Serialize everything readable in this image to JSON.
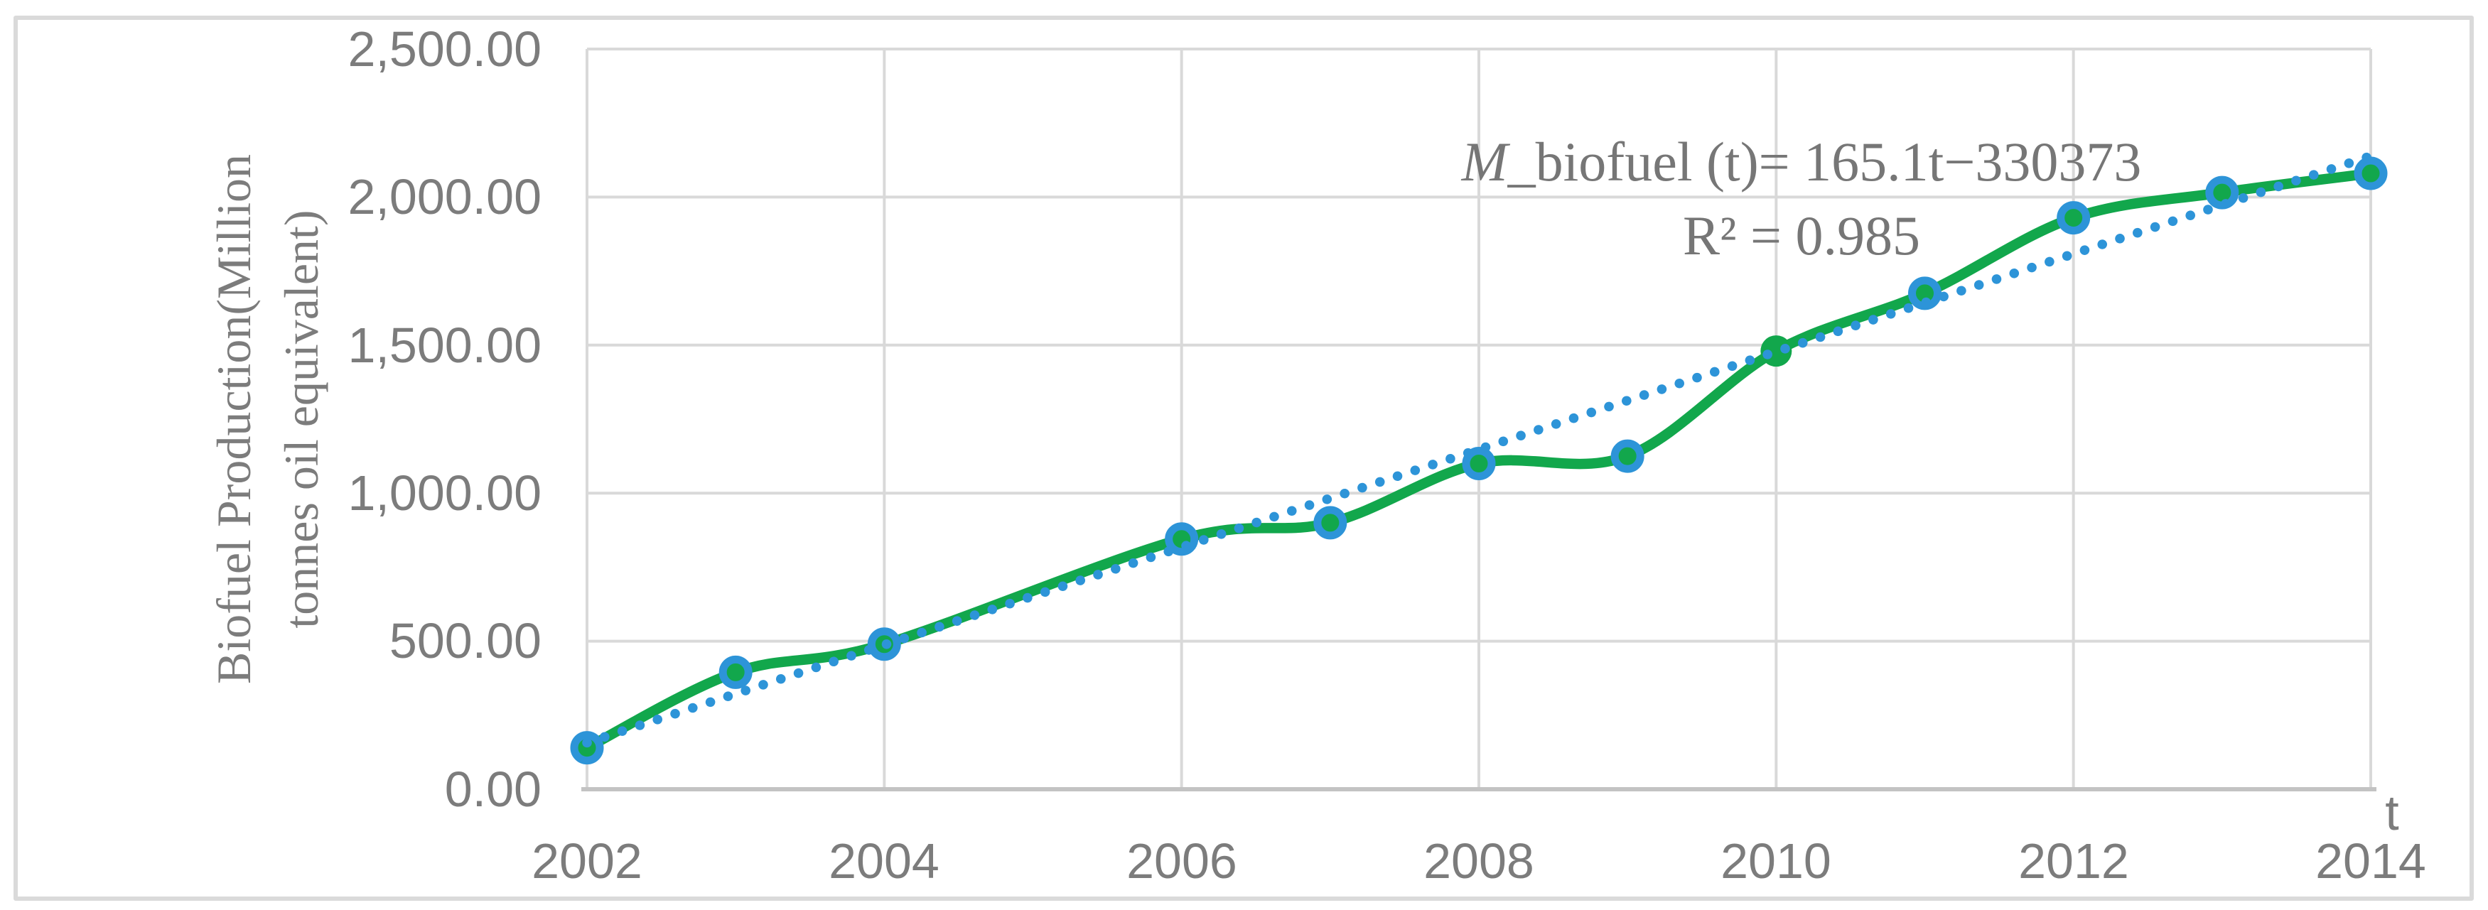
{
  "figure": {
    "background_color": "#FFFFFF",
    "frame_color": "#DADADA"
  },
  "axes": {
    "text_color": "#7C7C7C",
    "grid_color": "#D9D9D9",
    "axis_line_color": "#C3C3C3",
    "y_title_line1": "Biofuel Production(Million",
    "y_title_line2": "tonnes oil equivalent)",
    "x_title": "t",
    "y_ticks": [
      "2,500.00",
      "2,000.00",
      "1,500.00",
      "1,000.00",
      "500.00",
      "0.00"
    ],
    "x_ticks": [
      "2002",
      "2004",
      "2006",
      "2008",
      "2010",
      "2012",
      "2014"
    ]
  },
  "annotation": {
    "equation_var": "M",
    "equation_rest": "_biofuel (t)= 165.1t−330373",
    "r_squared_label": "R² = 0.985",
    "color": "#767676"
  },
  "chart_data": {
    "type": "line",
    "title": "",
    "xlabel": "t",
    "ylabel": "Biofuel Production(Million tonnes oil equivalent)",
    "x_range": [
      2002,
      2014
    ],
    "ylim": [
      0,
      2500
    ],
    "y_tick_step": 500,
    "x_tick_step": 2,
    "grid": true,
    "legend": "none",
    "series": [
      {
        "name": "biofuel-production",
        "color": "#12A74C",
        "marker_ring_color": "#2D94D8",
        "line_width": 14.5,
        "smooth": true,
        "points": [
          {
            "x": 2002,
            "y": 140
          },
          {
            "x": 2003,
            "y": 395
          },
          {
            "x": 2004,
            "y": 490
          },
          {
            "x": 2006,
            "y": 845
          },
          {
            "x": 2007,
            "y": 900
          },
          {
            "x": 2008,
            "y": 1100
          },
          {
            "x": 2009,
            "y": 1125
          },
          {
            "x": 2010,
            "y": 1480,
            "marker": "plain"
          },
          {
            "x": 2011,
            "y": 1675
          },
          {
            "x": 2012,
            "y": 1930
          },
          {
            "x": 2013,
            "y": 2015
          },
          {
            "x": 2014,
            "y": 2080
          }
        ]
      },
      {
        "name": "linear-trendline",
        "type": "trendline",
        "color": "#2D94D8",
        "style": "dotted",
        "slope": 165.1,
        "intercept": -330373,
        "r2": 0.985
      }
    ]
  }
}
